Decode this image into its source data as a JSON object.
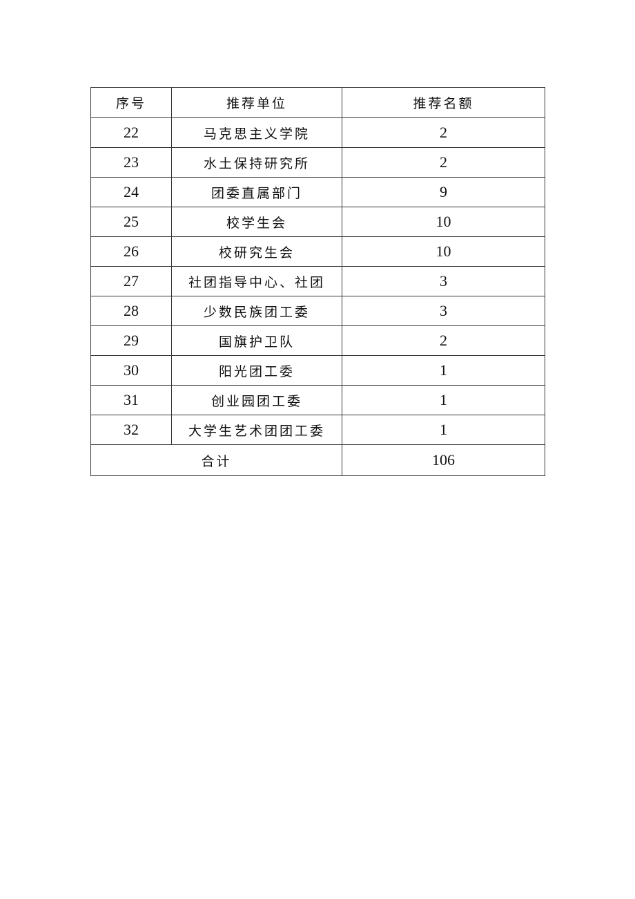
{
  "table": {
    "headers": [
      "序号",
      "推荐单位",
      "推荐名额"
    ],
    "rows": [
      {
        "no": "22",
        "unit": "马克思主义学院",
        "quota": "2"
      },
      {
        "no": "23",
        "unit": "水土保持研究所",
        "quota": "2"
      },
      {
        "no": "24",
        "unit": "团委直属部门",
        "quota": "9"
      },
      {
        "no": "25",
        "unit": "校学生会",
        "quota": "10"
      },
      {
        "no": "26",
        "unit": "校研究生会",
        "quota": "10"
      },
      {
        "no": "27",
        "unit": "社团指导中心、社团",
        "quota": "3"
      },
      {
        "no": "28",
        "unit": "少数民族团工委",
        "quota": "3"
      },
      {
        "no": "29",
        "unit": "国旗护卫队",
        "quota": "2"
      },
      {
        "no": "30",
        "unit": "阳光团工委",
        "quota": "1"
      },
      {
        "no": "31",
        "unit": "创业园团工委",
        "quota": "1"
      },
      {
        "no": "32",
        "unit": "大学生艺术团团工委",
        "quota": "1"
      }
    ],
    "total_label": "合计",
    "total_value": "106"
  }
}
